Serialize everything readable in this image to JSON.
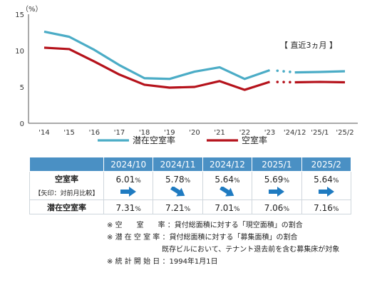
{
  "chart_data": {
    "type": "line",
    "y_unit_label": "（%）",
    "ylim": [
      0,
      15
    ],
    "yticks": [
      "0",
      "5",
      "10",
      "15"
    ],
    "categories": [
      "'14",
      "'15",
      "'16",
      "'17",
      "'18",
      "'19",
      "'20",
      "'21",
      "'22",
      "'23",
      "'24/12",
      "'25/1",
      "'25/2"
    ],
    "series": [
      {
        "name": "潜在空室率",
        "color": "#4bacc6",
        "values": [
          12.6,
          11.9,
          10.1,
          8.0,
          6.2,
          6.1,
          7.1,
          7.7,
          6.1,
          7.3,
          7.0,
          7.06,
          7.16
        ]
      },
      {
        "name": "空室率",
        "color": "#b5121b",
        "values": [
          10.4,
          10.2,
          8.5,
          6.7,
          5.3,
          4.9,
          5.0,
          5.8,
          4.6,
          5.7,
          5.64,
          5.69,
          5.64
        ]
      }
    ],
    "recent_label": "【 直近3ヵ月 】",
    "grid": false,
    "legend": "bottom"
  },
  "table": {
    "months": [
      "2024/10",
      "2024/11",
      "2024/12",
      "2025/1",
      "2025/2"
    ],
    "vacancy_label": "空室率",
    "vacancy_values": [
      "6.01",
      "5.78",
      "5.64",
      "5.69",
      "5.64"
    ],
    "arrow_label": "【矢印：対前月比較】",
    "arrows": [
      "right",
      "down-right",
      "down-right",
      "right",
      "right"
    ],
    "potential_label": "潜在空室率",
    "potential_values": [
      "7.31",
      "7.21",
      "7.01",
      "7.06",
      "7.16"
    ],
    "unit": "%"
  },
  "notes": {
    "n1_mark": "※",
    "n1_term": "空　　室　　率",
    "n1_text": "：貸付総面積に対する「現空面積」の割合",
    "n2_mark": "※",
    "n2_term": "潜 在 空 室 率",
    "n2_text": "：貸付総面積に対する「募集面積」の割合",
    "n2_sub": "既存ビルにおいて、テナント退去前を含む募集床が対象",
    "n3_mark": "※",
    "n3_term": "統 計 開 始 日",
    "n3_text": "：1994年1月1日"
  }
}
